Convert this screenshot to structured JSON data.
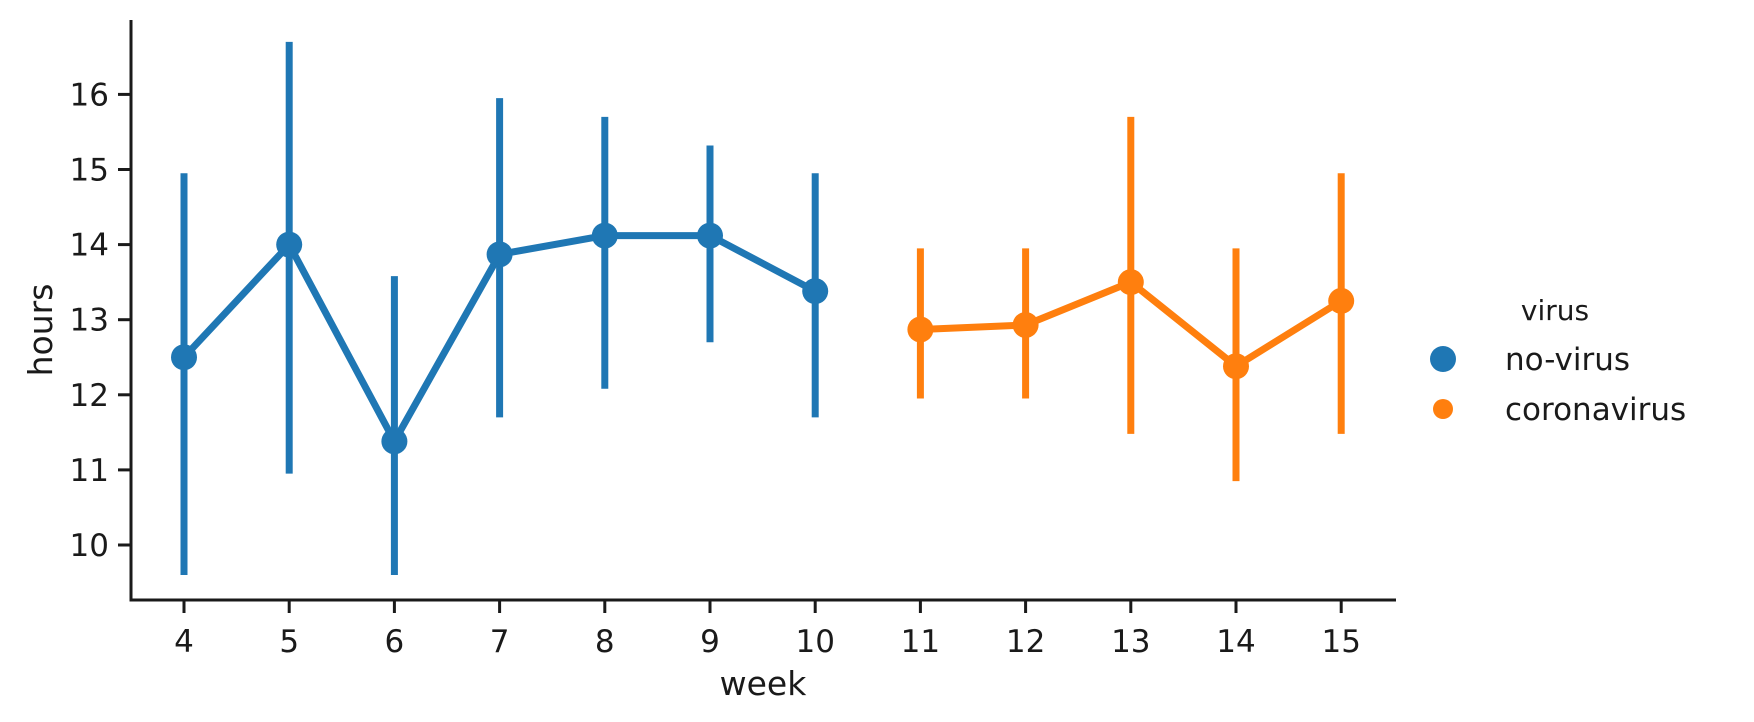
{
  "chart_data": {
    "type": "line",
    "xlabel": "week",
    "ylabel": "hours",
    "categories": [
      "4",
      "5",
      "6",
      "7",
      "8",
      "9",
      "10",
      "11",
      "12",
      "13",
      "14",
      "15"
    ],
    "ylim": [
      9.3,
      17.0
    ],
    "yticks": [
      10,
      11,
      12,
      13,
      14,
      15,
      16
    ],
    "grid": false,
    "legend": {
      "title": "virus",
      "placement": "right"
    },
    "series": [
      {
        "name": "no-virus",
        "color": "#1f77b4",
        "points": [
          {
            "x": "4",
            "y": 12.5,
            "low": 9.6,
            "high": 14.95
          },
          {
            "x": "5",
            "y": 14.0,
            "low": 10.95,
            "high": 16.7
          },
          {
            "x": "6",
            "y": 11.38,
            "low": 9.6,
            "high": 13.58
          },
          {
            "x": "7",
            "y": 13.87,
            "low": 11.7,
            "high": 15.95
          },
          {
            "x": "8",
            "y": 14.12,
            "low": 12.08,
            "high": 15.7
          },
          {
            "x": "9",
            "y": 14.12,
            "low": 12.7,
            "high": 15.32
          },
          {
            "x": "10",
            "y": 13.38,
            "low": 11.7,
            "high": 14.95
          }
        ]
      },
      {
        "name": "coronavirus",
        "color": "#ff7f0e",
        "points": [
          {
            "x": "11",
            "y": 12.87,
            "low": 11.95,
            "high": 13.95
          },
          {
            "x": "12",
            "y": 12.93,
            "low": 11.95,
            "high": 13.95
          },
          {
            "x": "13",
            "y": 13.5,
            "low": 11.48,
            "high": 15.7
          },
          {
            "x": "14",
            "y": 12.38,
            "low": 10.85,
            "high": 13.95
          },
          {
            "x": "15",
            "y": 13.25,
            "low": 11.48,
            "high": 14.95
          }
        ]
      }
    ]
  }
}
